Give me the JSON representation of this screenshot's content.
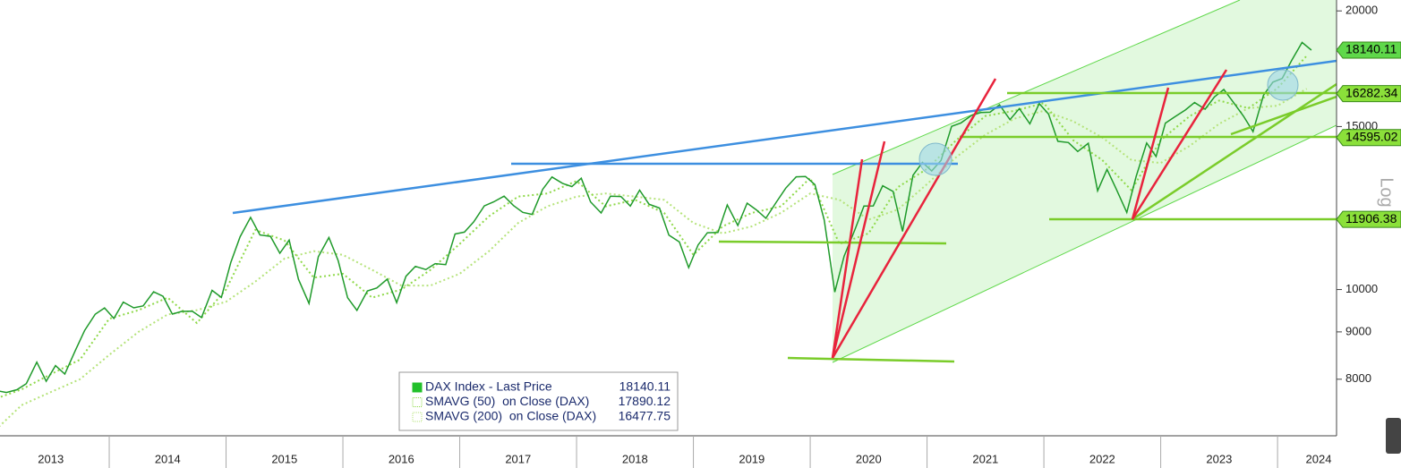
{
  "chart_data": {
    "type": "line",
    "log_scale": true,
    "xlim": [
      2013.065,
      2024.505
    ],
    "ylim": [
      6950,
      20550
    ],
    "xticks": [
      {
        "value": 2013,
        "label": "2013"
      },
      {
        "value": 2014,
        "label": "2014"
      },
      {
        "value": 2015,
        "label": "2015"
      },
      {
        "value": 2016,
        "label": "2016"
      },
      {
        "value": 2017,
        "label": "2017"
      },
      {
        "value": 2018,
        "label": "2018"
      },
      {
        "value": 2019,
        "label": "2019"
      },
      {
        "value": 2020,
        "label": "2020"
      },
      {
        "value": 2021,
        "label": "2021"
      },
      {
        "value": 2022,
        "label": "2022"
      },
      {
        "value": 2023,
        "label": "2023"
      },
      {
        "value": 2024,
        "label": "2024"
      }
    ],
    "yticks": [
      8000,
      9000,
      10000,
      15000,
      20000
    ],
    "y_axis_label": "Log",
    "level_labels": [
      18140.11,
      16282.34,
      14595.02,
      11906.38
    ],
    "series": [
      {
        "name": "DAX Index - Last Price",
        "last_value": 18140.11,
        "color": "#1f9a2a",
        "style": "solid",
        "x": [
          2013.04,
          2013.12,
          2013.21,
          2013.29,
          2013.38,
          2013.46,
          2013.54,
          2013.62,
          2013.71,
          2013.79,
          2013.88,
          2013.96,
          2014.04,
          2014.12,
          2014.21,
          2014.29,
          2014.38,
          2014.46,
          2014.54,
          2014.62,
          2014.71,
          2014.79,
          2014.88,
          2014.96,
          2015.04,
          2015.12,
          2015.21,
          2015.29,
          2015.38,
          2015.46,
          2015.54,
          2015.62,
          2015.71,
          2015.79,
          2015.88,
          2015.96,
          2016.04,
          2016.12,
          2016.21,
          2016.29,
          2016.38,
          2016.46,
          2016.54,
          2016.62,
          2016.71,
          2016.79,
          2016.88,
          2016.96,
          2017.04,
          2017.12,
          2017.21,
          2017.29,
          2017.38,
          2017.46,
          2017.54,
          2017.62,
          2017.71,
          2017.79,
          2017.88,
          2017.96,
          2018.04,
          2018.12,
          2018.21,
          2018.29,
          2018.38,
          2018.46,
          2018.54,
          2018.62,
          2018.71,
          2018.79,
          2018.88,
          2018.96,
          2019.04,
          2019.12,
          2019.21,
          2019.29,
          2019.38,
          2019.46,
          2019.54,
          2019.62,
          2019.71,
          2019.79,
          2019.88,
          2019.96,
          2020.04,
          2020.12,
          2020.21,
          2020.29,
          2020.38,
          2020.46,
          2020.54,
          2020.62,
          2020.71,
          2020.79,
          2020.88,
          2020.96,
          2021.04,
          2021.12,
          2021.21,
          2021.29,
          2021.38,
          2021.46,
          2021.54,
          2021.62,
          2021.71,
          2021.79,
          2021.88,
          2021.96,
          2022.04,
          2022.12,
          2022.21,
          2022.29,
          2022.38,
          2022.46,
          2022.54,
          2022.62,
          2022.71,
          2022.79,
          2022.88,
          2022.96,
          2023.04,
          2023.12,
          2023.21,
          2023.29,
          2023.38,
          2023.46,
          2023.54,
          2023.62,
          2023.71,
          2023.79,
          2023.88,
          2023.96,
          2024.04,
          2024.12,
          2024.21,
          2024.29
        ],
        "values": [
          7776,
          7741,
          7795,
          7914,
          8348,
          7959,
          8276,
          8103,
          8594,
          9033,
          9405,
          9552,
          9306,
          9692,
          9556,
          9603,
          9943,
          9833,
          9407,
          9470,
          9474,
          9326,
          9980,
          9806,
          10694,
          11402,
          11966,
          11454,
          11414,
          10945,
          11309,
          10259,
          9660,
          10850,
          11382,
          10743,
          9798,
          9495,
          9966,
          10039,
          10263,
          9680,
          10337,
          10593,
          10511,
          10665,
          10640,
          11481,
          11535,
          11834,
          12313,
          12438,
          12615,
          12325,
          12118,
          12056,
          12829,
          13230,
          13024,
          12918,
          13189,
          12436,
          12097,
          12612,
          12605,
          12306,
          12806,
          12364,
          12247,
          11447,
          11257,
          10559,
          11173,
          11516,
          11526,
          12344,
          11727,
          12399,
          12189,
          11939,
          12428,
          12867,
          13236,
          13249,
          12982,
          11890,
          9936,
          10862,
          11587,
          12311,
          12313,
          12945,
          12761,
          11556,
          13291,
          13719,
          13433,
          13786,
          15008,
          15136,
          15421,
          15531,
          15544,
          15835,
          15261,
          15688,
          15100,
          15885,
          15471,
          14461,
          14415,
          14098,
          14388,
          12784,
          13484,
          12835,
          12114,
          13253,
          14397,
          13924,
          15128,
          15365,
          15629,
          15922,
          15664,
          16148,
          16447,
          15947,
          15387,
          14810,
          16215,
          16752,
          16904,
          17678,
          18492,
          18140.11
        ]
      },
      {
        "name": "SMAVG (50)  on Close (DAX)",
        "last_value": 17890.12,
        "color": "#8fd94a",
        "style": "dotted",
        "x": [
          2013,
          2013.25,
          2013.5,
          2013.75,
          2014,
          2014.25,
          2014.5,
          2014.75,
          2015,
          2015.25,
          2015.5,
          2015.75,
          2016,
          2016.25,
          2016.5,
          2016.75,
          2017,
          2017.25,
          2017.5,
          2017.75,
          2018,
          2018.25,
          2018.5,
          2018.75,
          2019,
          2019.25,
          2019.5,
          2019.75,
          2020,
          2020.25,
          2020.5,
          2020.75,
          2021,
          2021.25,
          2021.5,
          2021.75,
          2022,
          2022.25,
          2022.5,
          2022.75,
          2023,
          2023.25,
          2023.5,
          2023.75,
          2024,
          2024.25
        ],
        "values": [
          7600,
          7800,
          8100,
          8400,
          9300,
          9500,
          9800,
          9200,
          10000,
          11600,
          11300,
          10300,
          10400,
          9800,
          10000,
          10500,
          11200,
          12000,
          12600,
          12700,
          13100,
          12300,
          12500,
          12100,
          10900,
          11700,
          12100,
          12300,
          13200,
          11200,
          11500,
          12900,
          13500,
          14500,
          15400,
          15600,
          15900,
          14500,
          13800,
          12800,
          14500,
          15400,
          16000,
          15700,
          16500,
          17890.12
        ]
      },
      {
        "name": "SMAVG (200)  on Close (DAX)",
        "last_value": 16477.75,
        "color": "#b5e37a",
        "style": "dotted",
        "x": [
          2013,
          2013.25,
          2013.5,
          2013.75,
          2014,
          2014.25,
          2014.5,
          2014.75,
          2015,
          2015.25,
          2015.5,
          2015.75,
          2016,
          2016.25,
          2016.5,
          2016.75,
          2017,
          2017.25,
          2017.5,
          2017.75,
          2018,
          2018.25,
          2018.5,
          2018.75,
          2019,
          2019.25,
          2019.5,
          2019.75,
          2020,
          2020.25,
          2020.5,
          2020.75,
          2021,
          2021.25,
          2021.5,
          2021.75,
          2022,
          2022.25,
          2022.5,
          2022.75,
          2023,
          2023.25,
          2023.5,
          2023.75,
          2024,
          2024.25
        ],
        "values": [
          7000,
          7500,
          7750,
          8000,
          8500,
          9000,
          9400,
          9500,
          9700,
          10200,
          10800,
          11000,
          10900,
          10500,
          10100,
          10100,
          10400,
          11000,
          11800,
          12300,
          12600,
          12700,
          12600,
          12500,
          11800,
          11500,
          11700,
          12100,
          12700,
          12500,
          11900,
          12200,
          13000,
          13900,
          14700,
          15300,
          15600,
          15200,
          14600,
          13800,
          13700,
          14300,
          15100,
          15700,
          15800,
          16477.75
        ]
      }
    ]
  }
}
